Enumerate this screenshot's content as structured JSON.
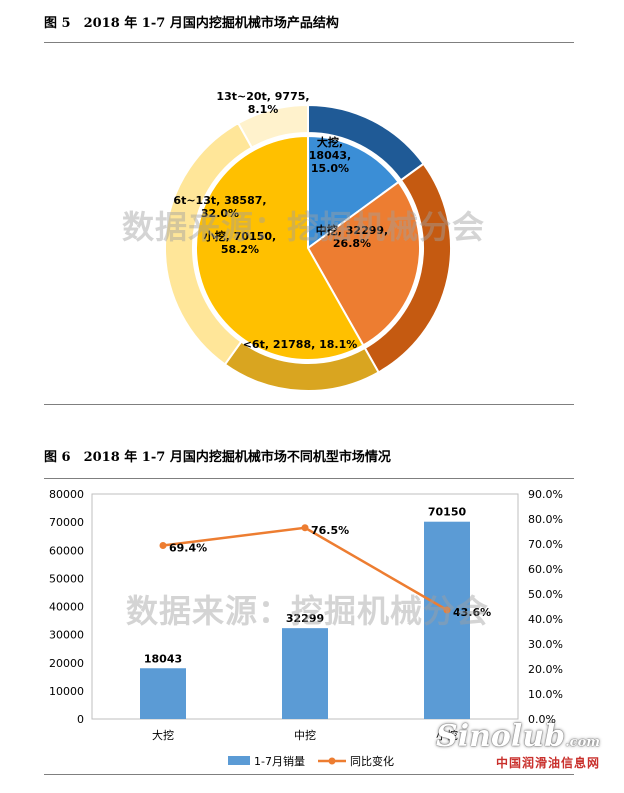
{
  "figure5": {
    "title": "图 5　2018 年 1-7 月国内挖掘机械市场产品结构",
    "watermark": "数据来源：挖掘机械分会",
    "chart_data": {
      "type": "pie",
      "variant": "double-ring",
      "inner": [
        {
          "label": "大挖,\n18043,\n15.0%",
          "name": "大挖",
          "value": 18043,
          "percent": 15.0,
          "color": "#3b8ed6"
        },
        {
          "label": "中挖, 32299,\n26.8%",
          "name": "中挖",
          "value": 32299,
          "percent": 26.8,
          "color": "#ed7d31"
        },
        {
          "label": "小挖, 70150,\n58.2%",
          "name": "小挖",
          "value": 70150,
          "percent": 58.2,
          "color": "#ffc000"
        }
      ],
      "outer": [
        {
          "value": 18043,
          "color": "#1f5a96"
        },
        {
          "value": 32299,
          "color": "#c55a11"
        },
        {
          "label": "<6t, 21788, 18.1%",
          "name": "<6t",
          "value": 21788,
          "percent": 18.1,
          "color": "#d9a520"
        },
        {
          "label": "6t~13t, 38587,\n32.0%",
          "name": "6t~13t",
          "value": 38587,
          "percent": 32.0,
          "color": "#ffe699"
        },
        {
          "label": "13t~20t, 9775,\n8.1%",
          "name": "13t~20t",
          "value": 9775,
          "percent": 8.1,
          "color": "#fff2cc"
        }
      ]
    }
  },
  "figure6": {
    "title": "图 6　2018 年 1-7 月国内挖掘机械市场不同机型市场情况",
    "watermark": "数据来源：挖掘机械分会",
    "chart_data": {
      "type": "bar",
      "categories": [
        "大挖",
        "中挖",
        "小挖"
      ],
      "series": [
        {
          "name": "1-7月销量",
          "type": "bar",
          "axis": "left",
          "values": [
            18043,
            32299,
            70150
          ],
          "labels": [
            "18043",
            "32299",
            "70150"
          ],
          "color": "#5b9bd5"
        },
        {
          "name": "同比变化",
          "type": "line",
          "axis": "right",
          "values": [
            69.4,
            76.5,
            43.6
          ],
          "labels": [
            "69.4%",
            "76.5%",
            "43.6%"
          ],
          "color": "#ed7d31"
        }
      ],
      "ylim": [
        0,
        80000
      ],
      "yticks": [
        "0",
        "10000",
        "20000",
        "30000",
        "40000",
        "50000",
        "60000",
        "70000",
        "80000"
      ],
      "y2lim": [
        0,
        90
      ],
      "y2ticks": [
        "0.0%",
        "10.0%",
        "20.0%",
        "30.0%",
        "40.0%",
        "50.0%",
        "60.0%",
        "70.0%",
        "80.0%",
        "90.0%"
      ],
      "legend": "bottom"
    }
  },
  "logo": {
    "main": "Sinolub",
    "sub": "中国润滑油信息网",
    "domain": ".com"
  }
}
